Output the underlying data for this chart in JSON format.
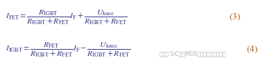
{
  "eq1": "$I_{\\mathrm{FET}} = \\dfrac{R_{\\mathrm{IGBT}}}{R_{\\mathrm{IGBT}} + R_{\\mathrm{FET}}} I_{\\mathrm{F}} + \\dfrac{U_{\\mathrm{knee}}}{R_{\\mathrm{IGBT}} + R_{\\mathrm{FET}}}$",
  "eq2": "$I_{\\mathrm{IGBT}} = \\dfrac{R_{\\mathrm{FET}}}{R_{\\mathrm{IGBT}} + R_{\\mathrm{FET}}} I_{\\mathrm{F}} - \\dfrac{U_{\\mathrm{knee}}}{R_{\\mathrm{IGBT}} + R_{\\mathrm{FET}}}$",
  "label1": "$(3)$",
  "label2": "$(4)$",
  "watermark": "公众号:SiC碳化MOS管及功率模块的应用",
  "bg_color": "#ffffff",
  "text_color": "#3a3a8a",
  "label_color": "#b05000",
  "watermark_color": "#b0b0b0",
  "eq_fontsize": 8.5,
  "label_fontsize": 9.5,
  "watermark_fontsize": 5.5
}
